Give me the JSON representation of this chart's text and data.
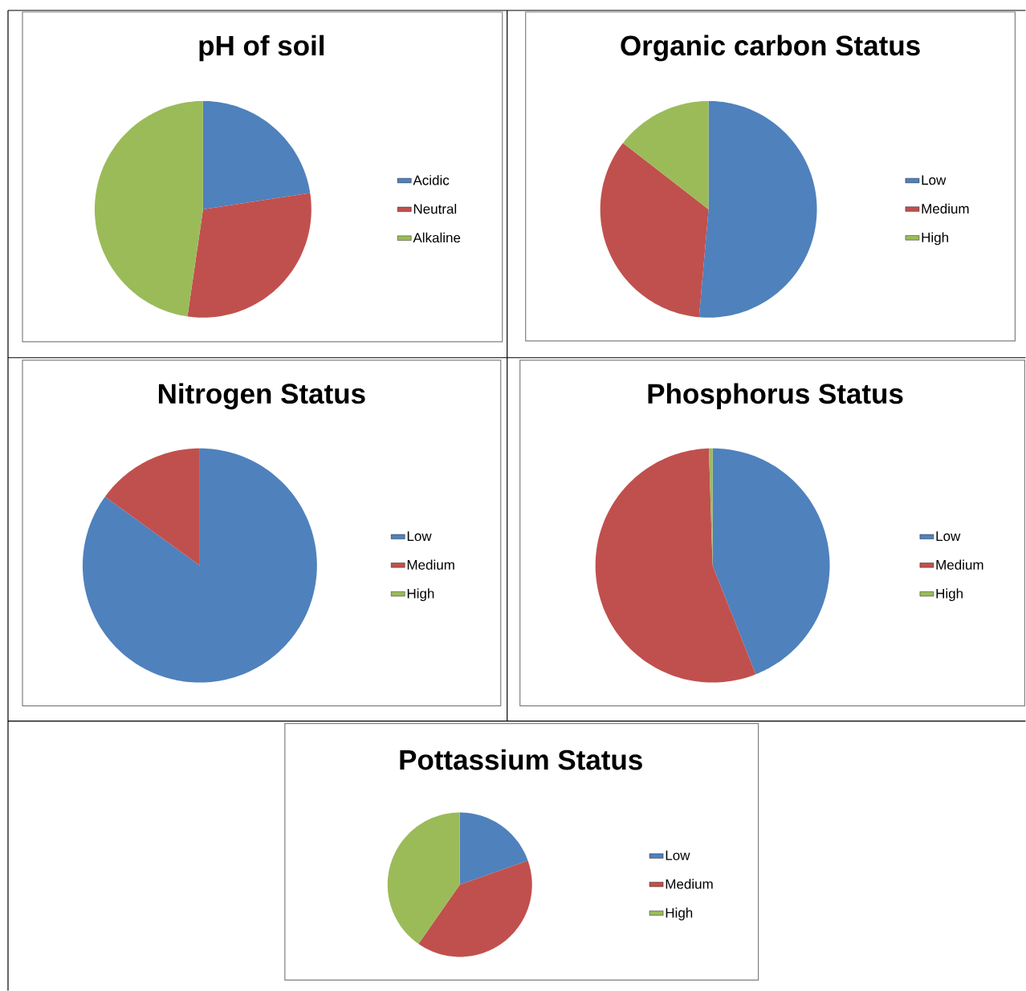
{
  "chart_data": [
    {
      "type": "pie",
      "title": "pH of soil",
      "categories": [
        "Acidic",
        "Neutral",
        "Alkaline"
      ],
      "values": [
        22.6,
        29.7,
        47.7
      ],
      "colors": [
        "#4f81bd",
        "#c0504d",
        "#9bbb59"
      ],
      "legend": "right"
    },
    {
      "type": "pie",
      "title": "Organic carbon Status",
      "categories": [
        "Low",
        "Medium",
        "High"
      ],
      "values": [
        51.4,
        34.1,
        14.5
      ],
      "colors": [
        "#4f81bd",
        "#c0504d",
        "#9bbb59"
      ],
      "legend": "right"
    },
    {
      "type": "pie",
      "title": "Nitrogen Status",
      "categories": [
        "Low",
        "Medium",
        "High"
      ],
      "values": [
        85,
        15,
        0
      ],
      "colors": [
        "#4f81bd",
        "#c0504d",
        "#9bbb59"
      ],
      "legend": "right"
    },
    {
      "type": "pie",
      "title": "Phosphorus Status",
      "categories": [
        "Low",
        "Medium",
        "High"
      ],
      "values": [
        44,
        55.5,
        0.5
      ],
      "colors": [
        "#4f81bd",
        "#c0504d",
        "#9bbb59"
      ],
      "legend": "right"
    },
    {
      "type": "pie",
      "title": "Pottassium Status",
      "categories": [
        "Low",
        "Medium",
        "High"
      ],
      "values": [
        19.6,
        40.1,
        40.3
      ],
      "colors": [
        "#4f81bd",
        "#c0504d",
        "#9bbb59"
      ],
      "legend": "right"
    }
  ]
}
